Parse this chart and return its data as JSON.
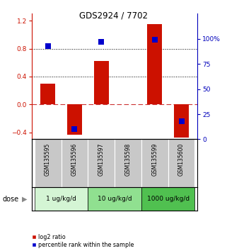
{
  "title": "GDS2924 / 7702",
  "samples": [
    "GSM135595",
    "GSM135596",
    "GSM135597",
    "GSM135598",
    "GSM135599",
    "GSM135600"
  ],
  "log2_ratio": [
    0.3,
    -0.43,
    0.62,
    0.0,
    1.15,
    -0.47
  ],
  "percentile_rank": [
    93,
    10,
    97,
    null,
    99,
    18
  ],
  "dose_groups": [
    {
      "label": "1 ug/kg/d",
      "start": 0,
      "end": 2,
      "color": "#d4f5d4"
    },
    {
      "label": "10 ug/kg/d",
      "start": 2,
      "end": 4,
      "color": "#90e090"
    },
    {
      "label": "1000 ug/kg/d",
      "start": 4,
      "end": 6,
      "color": "#50c050"
    }
  ],
  "ylim_left": [
    -0.5,
    1.3
  ],
  "ylim_right": [
    0,
    125
  ],
  "yticks_left": [
    -0.4,
    0.0,
    0.4,
    0.8,
    1.2
  ],
  "yticks_right": [
    0,
    25,
    50,
    75,
    100
  ],
  "hlines": [
    0.4,
    0.8
  ],
  "hline_zero": 0.0,
  "bar_color": "#cc1100",
  "dot_color": "#0000cc",
  "bar_width": 0.55,
  "dot_size": 30,
  "left_axis_color": "#cc1100",
  "right_axis_color": "#0000bb",
  "legend_red": "log2 ratio",
  "legend_blue": "percentile rank within the sample"
}
